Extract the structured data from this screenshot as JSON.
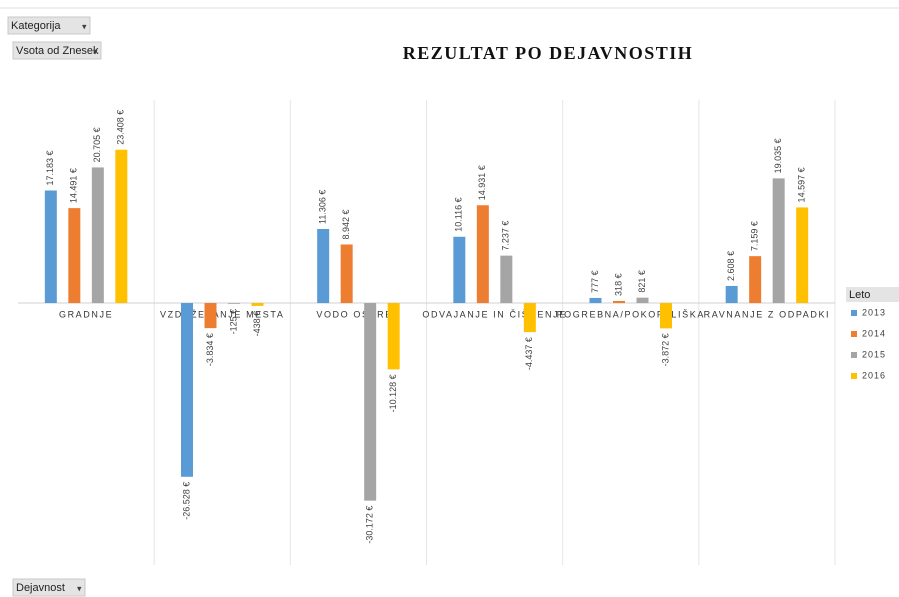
{
  "chart_data": {
    "type": "bar",
    "title": "REZULTAT PO DEJAVNOSTIH",
    "buttons": [
      "Kategorija",
      "Vsota od Znesek",
      "Dejavnost"
    ],
    "legend_title": "Leto",
    "categories": [
      "GRADNJE",
      "VZDRŽEVANJE MESTA",
      "VODO OSKRBA",
      "ODVAJANJE IN ČIŠČENJE",
      "POGREBNA/POKOPALIŠKA",
      "RAVNANJE Z ODPADKI"
    ],
    "series": [
      {
        "name": "2013",
        "color": "#5b9bd5",
        "values": [
          17183,
          -26528,
          11306,
          10116,
          777,
          2608
        ],
        "value_labels": [
          "17.183 €",
          "-26.528 €",
          "11.306 €",
          "10.116 €",
          "777 €",
          "2.608 €"
        ]
      },
      {
        "name": "2014",
        "color": "#ed7d31",
        "values": [
          14491,
          -3834,
          8942,
          14931,
          318,
          7159
        ],
        "value_labels": [
          "14.491 €",
          "-3.834 €",
          "8.942 €",
          "14.931 €",
          "318 €",
          "7.159 €"
        ]
      },
      {
        "name": "2015",
        "color": "#a5a5a5",
        "values": [
          20705,
          -125,
          -30172,
          7237,
          821,
          19035
        ],
        "value_labels": [
          "20.705 €",
          "-125 €",
          "-30.172 €",
          "7.237 €",
          "821 €",
          "19.035 €"
        ]
      },
      {
        "name": "2016",
        "color": "#ffc000",
        "values": [
          23408,
          -438,
          -10128,
          -4437,
          -3872,
          14597
        ],
        "value_labels": [
          "23.408 €",
          "-438 €",
          "-10.128 €",
          "-4.437 €",
          "-3.872 €",
          "14.597 €"
        ]
      }
    ],
    "ylim": [
      -40000,
      31000
    ],
    "legend": "right"
  }
}
